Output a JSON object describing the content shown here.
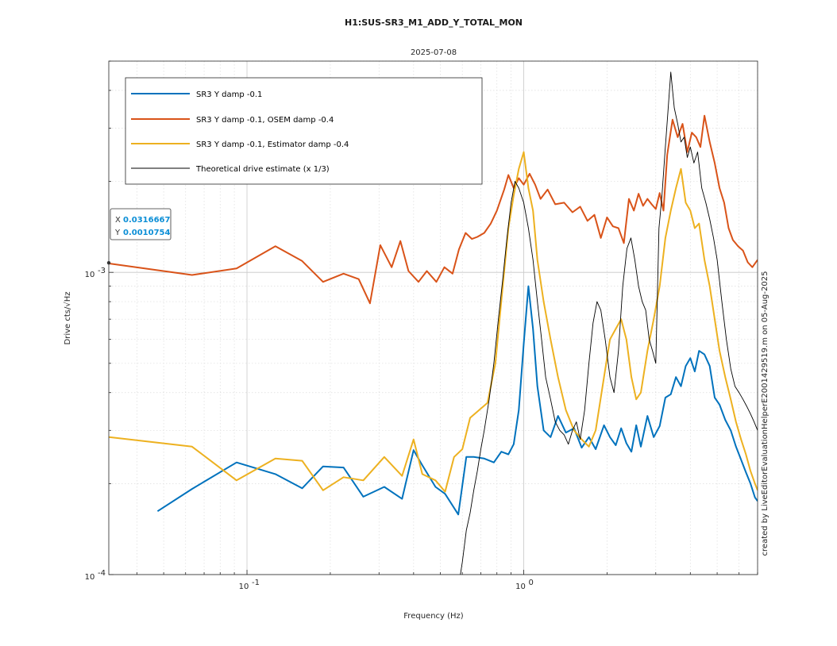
{
  "chart_data": {
    "type": "line",
    "title": "H1:SUS-SR3_M1_ADD_Y_TOTAL_MON",
    "subtitle": "2025-07-08",
    "xlabel": "Frequency (Hz)",
    "ylabel": "Drive cts/√Hz",
    "xscale": "log",
    "yscale": "log",
    "xlim": [
      0.0316667,
      7.0
    ],
    "ylim": [
      0.0001,
      0.005
    ],
    "grid": true,
    "minor_grid": true,
    "legend_position": "top-left",
    "x_ticks": [
      {
        "value": 0.1,
        "base": "10",
        "exp": "-1"
      },
      {
        "value": 1,
        "base": "10",
        "exp": "0"
      }
    ],
    "y_ticks": [
      {
        "value": 0.0001,
        "base": "10",
        "exp": "-4"
      },
      {
        "value": 0.001,
        "base": "10",
        "exp": "-3"
      }
    ],
    "annotation": "created by LiveEditorEvaluationHelperE2001429519.m on 05-Aug-2025",
    "datatip": {
      "x_label": "X",
      "x_value": "0.0316667",
      "y_label": "Y",
      "y_value": "0.0010754",
      "x": 0.0316667,
      "y": 0.0010754
    },
    "series": [
      {
        "name": "SR3 Y damp -0.1",
        "color": "#0072BD",
        "width": 2,
        "x": [
          0.0475,
          0.0633,
          0.0917,
          0.1267,
          0.1583,
          0.1883,
          0.2233,
          0.2633,
          0.3133,
          0.3633,
          0.4,
          0.43,
          0.48,
          0.52,
          0.58,
          0.62,
          0.66,
          0.72,
          0.78,
          0.83,
          0.88,
          0.92,
          0.96,
          1.0,
          1.04,
          1.08,
          1.12,
          1.18,
          1.25,
          1.33,
          1.42,
          1.52,
          1.62,
          1.72,
          1.82,
          1.95,
          2.05,
          2.15,
          2.25,
          2.35,
          2.45,
          2.55,
          2.65,
          2.8,
          2.95,
          3.1,
          3.25,
          3.4,
          3.55,
          3.7,
          3.85,
          4.0,
          4.15,
          4.3,
          4.5,
          4.7,
          4.9,
          5.1,
          5.35,
          5.6,
          5.85,
          6.1,
          6.35,
          6.6,
          6.85,
          7.0
        ],
        "y": [
          0.000162,
          0.000192,
          0.000235,
          0.000215,
          0.000193,
          0.000228,
          0.000226,
          0.000181,
          0.000195,
          0.000178,
          0.000258,
          0.00023,
          0.000195,
          0.000185,
          0.000158,
          0.000245,
          0.000245,
          0.000242,
          0.000235,
          0.000255,
          0.00025,
          0.00027,
          0.00035,
          0.00058,
          0.0009,
          0.00065,
          0.00042,
          0.0003,
          0.000285,
          0.000335,
          0.000295,
          0.000305,
          0.000263,
          0.000285,
          0.00026,
          0.000312,
          0.000285,
          0.000268,
          0.000305,
          0.000272,
          0.000255,
          0.000312,
          0.000265,
          0.000335,
          0.000285,
          0.00031,
          0.000385,
          0.000395,
          0.00045,
          0.00042,
          0.00049,
          0.00052,
          0.00047,
          0.00055,
          0.000535,
          0.00049,
          0.000385,
          0.000365,
          0.000325,
          0.0003,
          0.000265,
          0.00024,
          0.000218,
          0.0002,
          0.00018,
          0.000175
        ]
      },
      {
        "name": "SR3 Y damp -0.1, OSEM damp -0.4",
        "color": "#D95319",
        "width": 2,
        "x": [
          0.0317,
          0.0633,
          0.0917,
          0.1267,
          0.1583,
          0.1883,
          0.2233,
          0.2533,
          0.2783,
          0.3033,
          0.3333,
          0.3583,
          0.3833,
          0.4167,
          0.4467,
          0.4833,
          0.5167,
          0.5533,
          0.5833,
          0.6167,
          0.65,
          0.68,
          0.72,
          0.76,
          0.8,
          0.85,
          0.88,
          0.92,
          0.96,
          1.0,
          1.05,
          1.1,
          1.15,
          1.22,
          1.3,
          1.4,
          1.5,
          1.6,
          1.7,
          1.8,
          1.9,
          2.0,
          2.1,
          2.2,
          2.3,
          2.4,
          2.5,
          2.6,
          2.7,
          2.8,
          2.9,
          3.0,
          3.1,
          3.2,
          3.3,
          3.45,
          3.6,
          3.75,
          3.9,
          4.05,
          4.2,
          4.35,
          4.5,
          4.7,
          4.9,
          5.1,
          5.3,
          5.5,
          5.7,
          5.95,
          6.2,
          6.45,
          6.7,
          7.0
        ],
        "y": [
          0.00107,
          0.00098,
          0.00103,
          0.00122,
          0.00109,
          0.00093,
          0.00099,
          0.00095,
          0.00079,
          0.00123,
          0.00104,
          0.00127,
          0.00101,
          0.00093,
          0.00101,
          0.00093,
          0.00104,
          0.00099,
          0.00119,
          0.00135,
          0.00129,
          0.00131,
          0.00135,
          0.00145,
          0.0016,
          0.00188,
          0.0021,
          0.0019,
          0.00205,
          0.00195,
          0.00212,
          0.00195,
          0.00175,
          0.00188,
          0.00168,
          0.0017,
          0.00158,
          0.00165,
          0.00148,
          0.00155,
          0.0013,
          0.00152,
          0.00142,
          0.0014,
          0.00125,
          0.00175,
          0.0016,
          0.00182,
          0.00166,
          0.00175,
          0.00168,
          0.00162,
          0.00183,
          0.0016,
          0.00245,
          0.0032,
          0.0028,
          0.0031,
          0.0025,
          0.0029,
          0.0028,
          0.0026,
          0.0033,
          0.0027,
          0.0023,
          0.0019,
          0.0017,
          0.0014,
          0.00128,
          0.00122,
          0.00118,
          0.00108,
          0.00104,
          0.0011
        ]
      },
      {
        "name": "SR3 Y damp -0.1, Estimator damp -0.4",
        "color": "#EDB120",
        "width": 2,
        "x": [
          0.0317,
          0.0633,
          0.0917,
          0.1267,
          0.1583,
          0.1883,
          0.2233,
          0.2633,
          0.3133,
          0.3633,
          0.4,
          0.43,
          0.48,
          0.52,
          0.56,
          0.6,
          0.64,
          0.69,
          0.74,
          0.79,
          0.84,
          0.88,
          0.92,
          0.96,
          1.0,
          1.04,
          1.08,
          1.12,
          1.18,
          1.25,
          1.33,
          1.42,
          1.52,
          1.62,
          1.72,
          1.82,
          1.95,
          2.05,
          2.15,
          2.25,
          2.35,
          2.45,
          2.55,
          2.65,
          2.8,
          2.95,
          3.1,
          3.25,
          3.4,
          3.55,
          3.7,
          3.85,
          4.0,
          4.15,
          4.3,
          4.5,
          4.7,
          4.9,
          5.1,
          5.35,
          5.6,
          5.85,
          6.1,
          6.35,
          6.6,
          6.85,
          7.0
        ],
        "y": [
          0.000285,
          0.000265,
          0.000205,
          0.000242,
          0.000238,
          0.00019,
          0.00021,
          0.000205,
          0.000245,
          0.000212,
          0.00028,
          0.000215,
          0.000205,
          0.000188,
          0.000245,
          0.00026,
          0.00033,
          0.00035,
          0.00037,
          0.0005,
          0.0009,
          0.0014,
          0.0018,
          0.0022,
          0.0025,
          0.0019,
          0.0016,
          0.0011,
          0.0008,
          0.0006,
          0.00045,
          0.00035,
          0.0003,
          0.00028,
          0.000265,
          0.0003,
          0.00045,
          0.0006,
          0.00065,
          0.0007,
          0.0006,
          0.00045,
          0.00038,
          0.0004,
          0.00055,
          0.0007,
          0.0009,
          0.0013,
          0.0016,
          0.0019,
          0.0022,
          0.0017,
          0.0016,
          0.0014,
          0.00145,
          0.0011,
          0.0009,
          0.0007,
          0.00055,
          0.00045,
          0.00038,
          0.00032,
          0.00028,
          0.00025,
          0.00022,
          0.0002,
          0.00019
        ]
      },
      {
        "name": "Theoretical drive estimate (x 1/3)",
        "color": "#000000",
        "width": 0.9,
        "x": [
          0.58,
          0.6,
          0.62,
          0.64,
          0.66,
          0.68,
          0.7,
          0.72,
          0.75,
          0.78,
          0.81,
          0.84,
          0.87,
          0.9,
          0.93,
          0.96,
          1.0,
          1.04,
          1.08,
          1.12,
          1.16,
          1.2,
          1.25,
          1.3,
          1.35,
          1.4,
          1.45,
          1.5,
          1.55,
          1.6,
          1.66,
          1.72,
          1.78,
          1.84,
          1.9,
          1.97,
          2.05,
          2.12,
          2.2,
          2.28,
          2.36,
          2.44,
          2.52,
          2.6,
          2.68,
          2.76,
          2.84,
          2.92,
          3.0,
          3.08,
          3.16,
          3.24,
          3.32,
          3.4,
          3.5,
          3.6,
          3.7,
          3.8,
          3.9,
          4.0,
          4.12,
          4.25,
          4.4,
          4.55,
          4.7,
          4.85,
          5.0,
          5.2,
          5.4,
          5.6,
          5.8,
          6.0,
          6.2,
          6.4,
          6.6,
          6.8,
          7.0
        ],
        "y": [
          9e-05,
          0.00011,
          0.00014,
          0.00016,
          0.00019,
          0.00022,
          0.00026,
          0.0003,
          0.00038,
          0.0005,
          0.0007,
          0.00095,
          0.0013,
          0.0017,
          0.002,
          0.0019,
          0.0017,
          0.0014,
          0.0011,
          0.0008,
          0.0006,
          0.00045,
          0.00038,
          0.00032,
          0.0003,
          0.00029,
          0.00027,
          0.0003,
          0.00032,
          0.00028,
          0.00035,
          0.0005,
          0.00068,
          0.0008,
          0.00075,
          0.0006,
          0.00045,
          0.0004,
          0.00055,
          0.0009,
          0.0012,
          0.0013,
          0.0011,
          0.0009,
          0.0008,
          0.00075,
          0.0006,
          0.00055,
          0.0005,
          0.0014,
          0.0018,
          0.0025,
          0.0034,
          0.0046,
          0.0035,
          0.0031,
          0.0027,
          0.0028,
          0.0024,
          0.0026,
          0.0023,
          0.0025,
          0.0019,
          0.0017,
          0.0015,
          0.0013,
          0.0011,
          0.0008,
          0.0006,
          0.00048,
          0.00042,
          0.0004,
          0.00038,
          0.00036,
          0.00034,
          0.00032,
          0.0003
        ]
      }
    ]
  }
}
